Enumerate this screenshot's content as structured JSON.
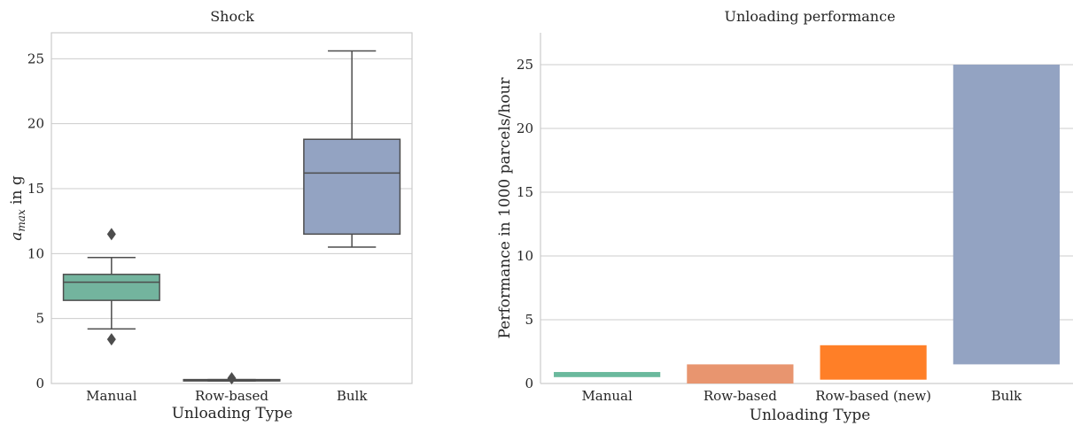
{
  "chart_data": [
    {
      "type": "box",
      "title": "Shock",
      "xlabel": "Unloading Type",
      "ylabel_main": "a",
      "ylabel_sub": "max",
      "ylabel_rest": " in g",
      "ylim": [
        0,
        27
      ],
      "yticks": [
        0,
        5,
        10,
        15,
        20,
        25
      ],
      "grid": true,
      "categories": [
        "Manual",
        "Row-based",
        "Bulk"
      ],
      "boxes": [
        {
          "name": "Manual",
          "min": 4.2,
          "q1": 6.4,
          "median": 7.8,
          "q3": 8.4,
          "max": 9.7,
          "outliers": [
            11.5,
            3.4
          ],
          "color": "#73b49e"
        },
        {
          "name": "Row-based",
          "min": 0.2,
          "q1": 0.2,
          "median": 0.25,
          "q3": 0.3,
          "max": 0.3,
          "outliers": [
            0.4
          ],
          "color": "#e8956f"
        },
        {
          "name": "Bulk",
          "min": 10.5,
          "q1": 11.5,
          "median": 16.2,
          "q3": 18.8,
          "max": 25.6,
          "outliers": [],
          "color": "#93a3c2"
        }
      ]
    },
    {
      "type": "bar",
      "title": "Unloading performance",
      "xlabel": "Unloading Type",
      "ylabel": "Performance in 1000 parcels/hour",
      "ylim": [
        0,
        27.5
      ],
      "yticks": [
        0,
        5,
        10,
        15,
        20,
        25
      ],
      "grid": true,
      "categories": [
        "Manual",
        "Row-based",
        "Row-based (new)",
        "Bulk"
      ],
      "bars": [
        {
          "name": "Manual",
          "low": 0.5,
          "high": 0.9,
          "color": "#6ab99d"
        },
        {
          "name": "Row-based",
          "low": 0.0,
          "high": 1.5,
          "color": "#e8956f"
        },
        {
          "name": "Row-based (new)",
          "low": 0.3,
          "high": 3.0,
          "color": "#ff7f27"
        },
        {
          "name": "Bulk",
          "low": 1.5,
          "high": 25.0,
          "color": "#93a3c2"
        }
      ]
    }
  ]
}
